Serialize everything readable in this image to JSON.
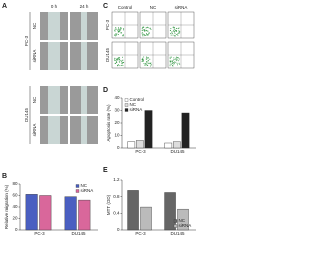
{
  "panel_labels": [
    "A",
    "B",
    "C",
    "D",
    "E"
  ],
  "panel_a": {
    "columns": [
      "0 h",
      "24 h"
    ],
    "rows": [
      "NC",
      "siRNA",
      "NC",
      "siRNA"
    ],
    "groups": [
      "PC-3",
      "DU145"
    ]
  },
  "panel_c": {
    "columns": [
      "Control",
      "NC",
      "siRNA"
    ],
    "rows": [
      "PC-3",
      "DU145"
    ]
  },
  "chart_data": [
    {
      "type": "bar",
      "ylabel": "Relative migration (%)",
      "categories": [
        "PC-3",
        "DU145"
      ],
      "series": [
        {
          "name": "NC",
          "color": "#4a5fc1",
          "values": [
            62,
            58
          ]
        },
        {
          "name": "siRNA",
          "color": "#d9679b",
          "values": [
            60,
            52
          ]
        }
      ],
      "ylim": [
        0,
        80
      ],
      "yticks": [
        0,
        20,
        40,
        60,
        80
      ],
      "legend": "upper right"
    },
    {
      "type": "bar",
      "ylabel": "Apoptosis rate (%)",
      "categories": [
        "PC-3",
        "DU145"
      ],
      "series": [
        {
          "name": "Control",
          "color": "#ffffff",
          "values": [
            5,
            4
          ]
        },
        {
          "name": "NC",
          "color": "#dddddd",
          "values": [
            6,
            5
          ]
        },
        {
          "name": "siRNA",
          "color": "#222222",
          "values": [
            30,
            28
          ]
        }
      ],
      "ylim": [
        0,
        40
      ],
      "yticks": [
        0,
        10,
        20,
        30,
        40
      ],
      "legend": "upper left"
    },
    {
      "type": "bar",
      "ylabel": "MTT (OD)",
      "categories": [
        "PC-3",
        "DU145"
      ],
      "series": [
        {
          "name": "NC",
          "color": "#666666",
          "values": [
            0.95,
            0.9
          ]
        },
        {
          "name": "siRNA",
          "color": "#bbbbbb",
          "values": [
            0.55,
            0.5
          ]
        }
      ],
      "ylim": [
        0,
        1.2
      ],
      "yticks": [
        0,
        0.4,
        0.8,
        1.2
      ],
      "legend": "lower right"
    }
  ]
}
